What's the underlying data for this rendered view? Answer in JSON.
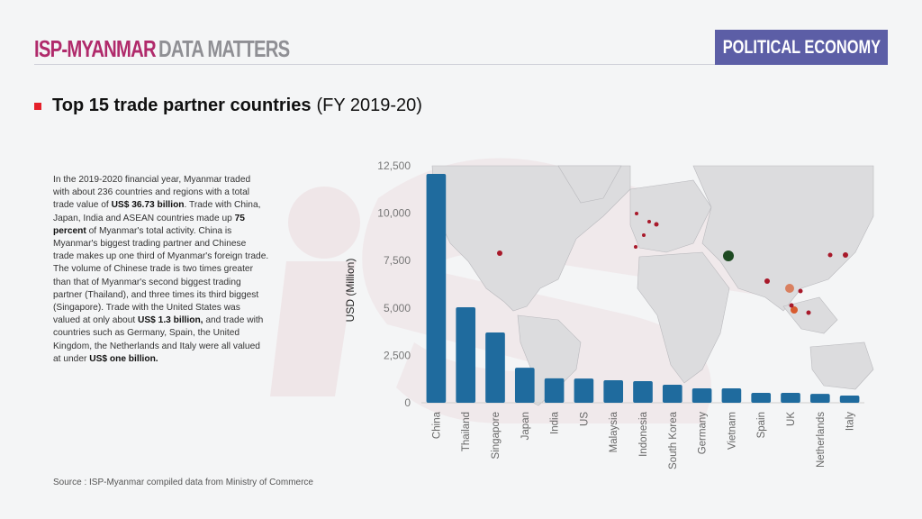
{
  "header": {
    "brand_primary": "ISP-MYANMAR",
    "brand_secondary": "DATA MATTERS",
    "section_badge": "POLITICAL ECONOMY"
  },
  "title": {
    "main": "Top 15 trade partner countries",
    "period": "(FY 2019-20)"
  },
  "description": {
    "p1": "In the 2019-2020 financial year, Myanmar traded with about 236 countries and regions with a total trade value of ",
    "b1": "US$ 36.73 billion",
    "p2": ". Trade with China, Japan, India and ASEAN countries made up ",
    "b2": "75 percent",
    "p3": " of Myanmar's total activity. China is Myanmar's biggest trading partner and Chinese trade makes up one third of Myanmar's foreign trade. The volume of Chinese trade is two times greater than that of Myanmar's second biggest trading partner (Thailand), and three times its third biggest (Singapore). Trade with the United States was valued at only about ",
    "b3": "US$ 1.3 billion,",
    "p4": " and trade with countries such as Germany, Spain, the United Kingdom, the Netherlands and Italy were all valued at under ",
    "b4": "US$ one billion."
  },
  "source": "Source : ISP-Myanmar compiled data from Ministry of Commerce",
  "colors": {
    "bar": "#1f6b9e",
    "brand_primary": "#b02a6b",
    "brand_secondary": "#8f8f94",
    "badge": "#5c5ea6",
    "bullet": "#e5202a",
    "map_land": "#dcdcde",
    "map_dot": "#a8192a",
    "map_dot_china": "#1e4a22",
    "map_dot_thailand": "#d98060",
    "map_dot_singapore": "#d85a2e"
  },
  "chart_data": {
    "type": "bar",
    "title": "Top 15 trade partner countries (FY 2019-20)",
    "xlabel": "",
    "ylabel": "USD (Million)",
    "ylim": [
      0,
      12500
    ],
    "yticks": [
      0,
      2500,
      5000,
      7500,
      10000,
      12500
    ],
    "ytick_labels": [
      "0",
      "2,500",
      "5,000",
      "7,500",
      "10,000",
      "12,500"
    ],
    "grid": false,
    "legend": "none",
    "categories": [
      "China",
      "Thailand",
      "Singapore",
      "Japan",
      "India",
      "US",
      "Malaysia",
      "Indonesia",
      "South Korea",
      "Germany",
      "Vietnam",
      "Spain",
      "UK",
      "Netherlands",
      "Italy"
    ],
    "values": [
      12070,
      5040,
      3710,
      1850,
      1290,
      1280,
      1190,
      1140,
      950,
      760,
      760,
      520,
      520,
      470,
      380
    ],
    "background": "world map with trade partner location dots"
  }
}
